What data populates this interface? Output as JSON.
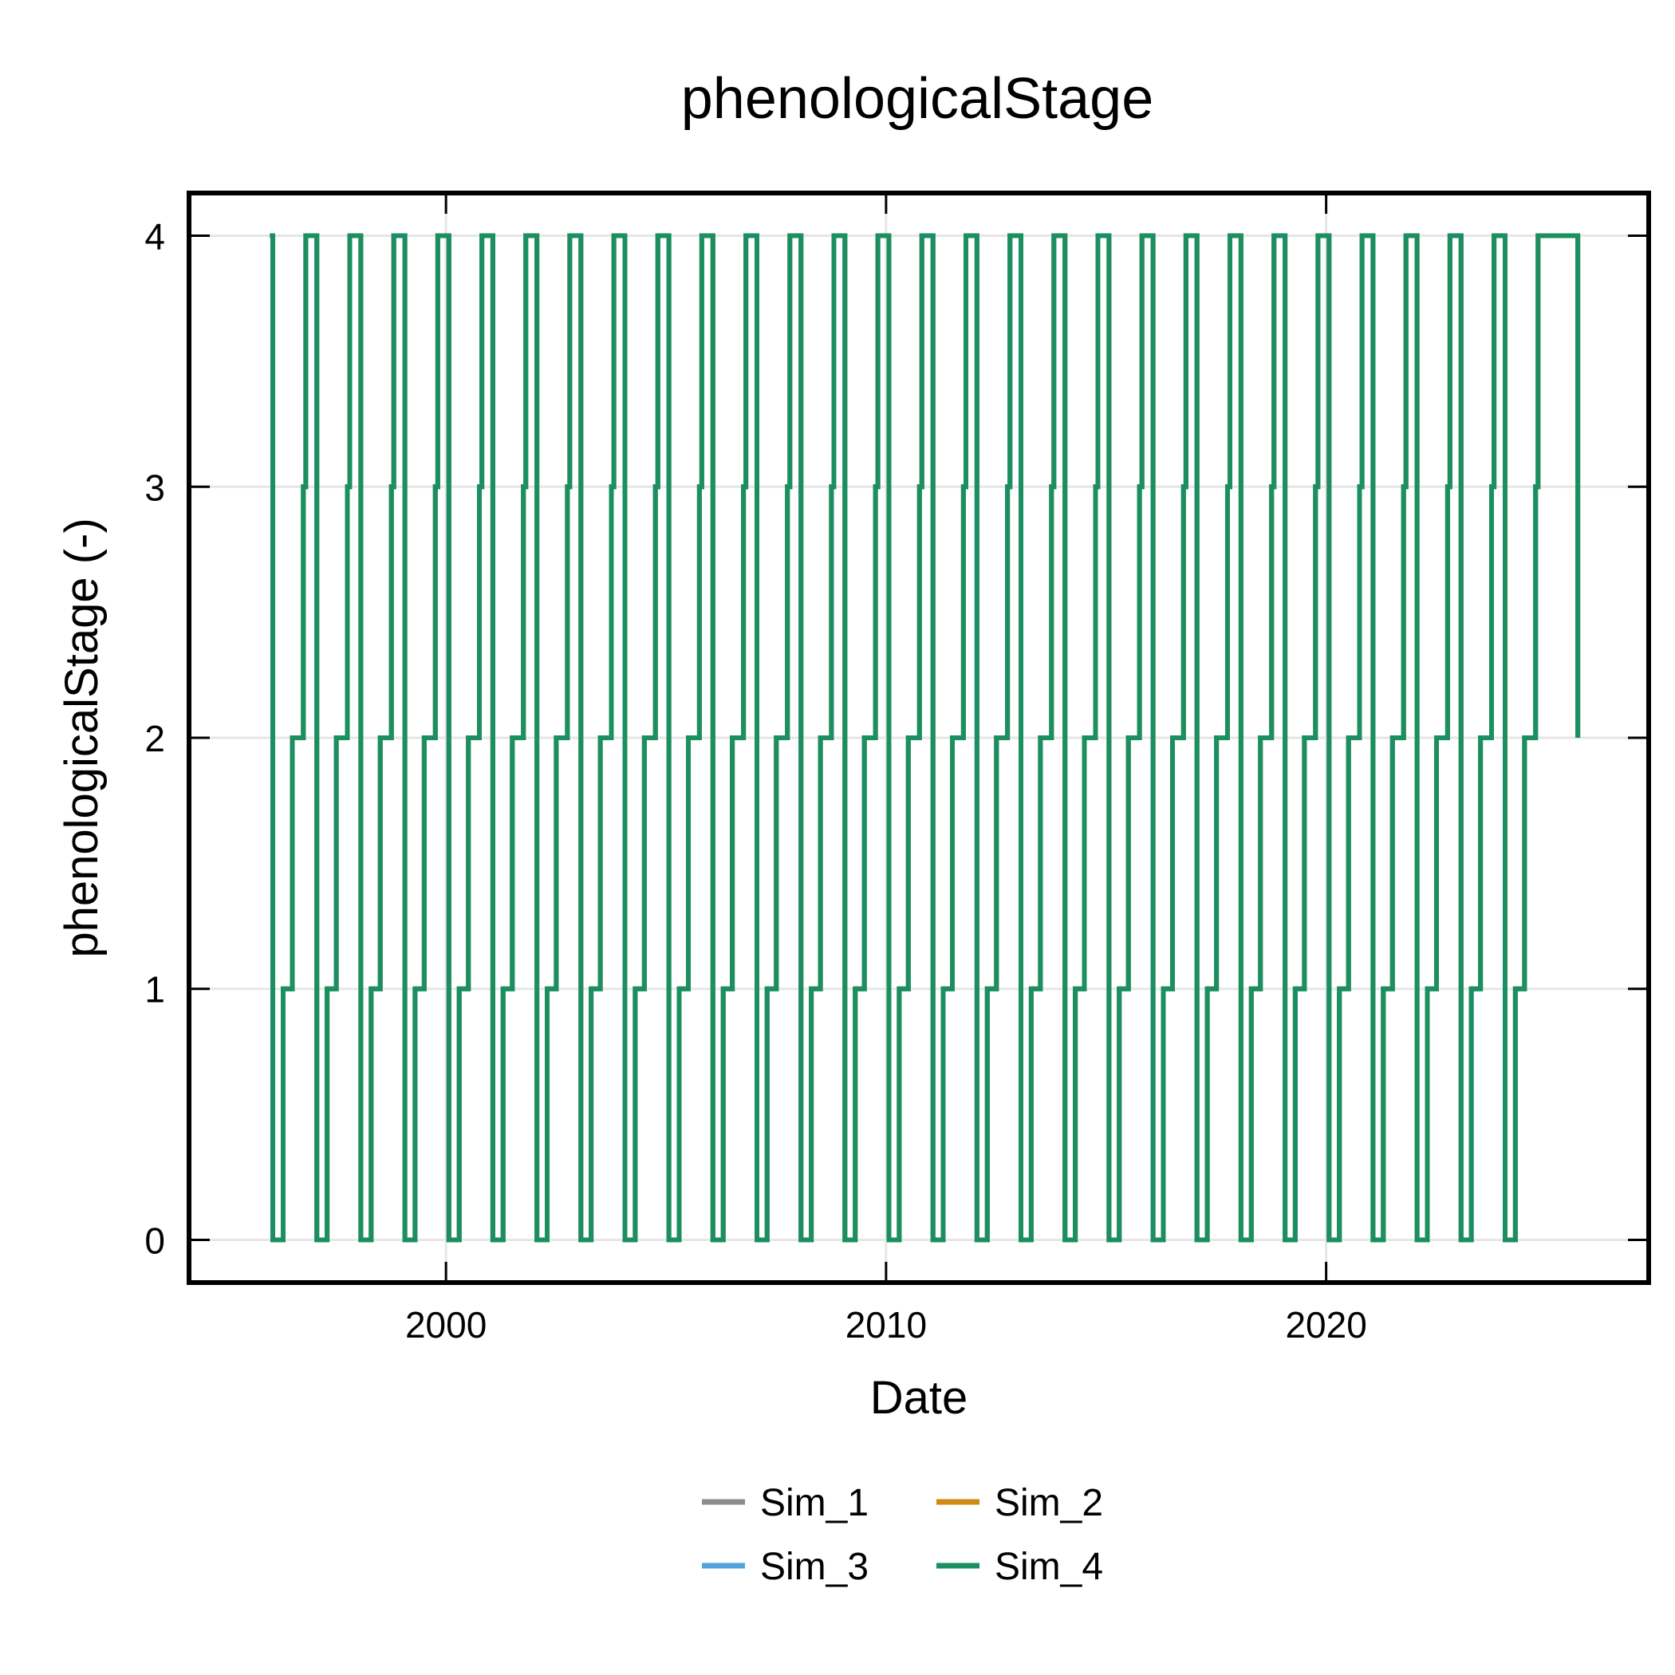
{
  "chart_data": {
    "type": "line",
    "title": "phenologicalStage",
    "xlabel": "Date",
    "ylabel": "phenologicalStage (-)",
    "x_ticks": [
      "2000",
      "2010",
      "2020"
    ],
    "y_ticks": [
      "0",
      "1",
      "2",
      "3",
      "4"
    ],
    "ylim": [
      -0.17,
      4.17
    ],
    "xlim": [
      "1994-03-01",
      "2027-05-01"
    ],
    "grid": true,
    "legend_position": "bottom-center",
    "series_colors": {
      "Sim_1": "#8c8c8c",
      "Sim_2": "#d08a14",
      "Sim_3": "#52a3dd",
      "Sim_4": "#1b8f5f"
    },
    "series": [
      {
        "name": "Sim_1"
      },
      {
        "name": "Sim_2"
      },
      {
        "name": "Sim_3"
      },
      {
        "name": "Sim_4"
      }
    ],
    "cycle": {
      "first_year": 1996,
      "last_year": 2024,
      "stage_steps": [
        {
          "month_day": "01-01",
          "stage": 4
        },
        {
          "month_day": "01-25",
          "stage": 0
        },
        {
          "month_day": "04-20",
          "stage": 1
        },
        {
          "month_day": "07-05",
          "stage": 2
        },
        {
          "month_day": "10-05",
          "stage": 3
        },
        {
          "month_day": "10-25",
          "stage": 4
        }
      ],
      "end": {
        "date": "2025-09-20",
        "stage": 2
      }
    }
  }
}
